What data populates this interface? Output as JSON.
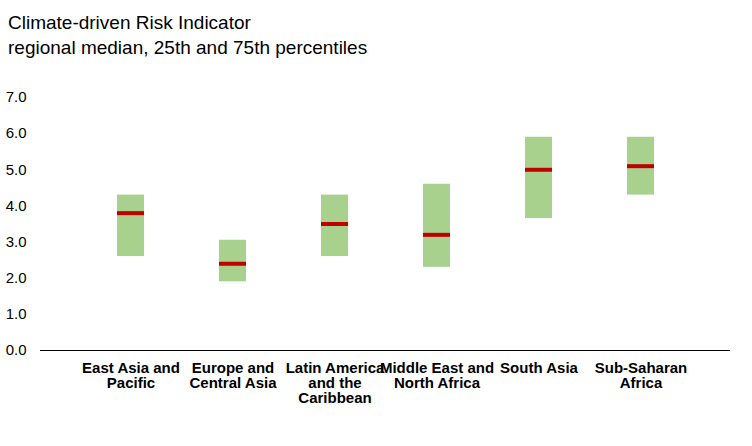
{
  "chart_data": {
    "type": "range_bar",
    "title": "Climate-driven Risk Indicator",
    "subtitle": "regional median, 25th and 75th percentiles",
    "categories": [
      "East Asia and Pacific",
      "Europe and Central Asia",
      "Latin America and the Caribbean",
      "Middle East and North Africa",
      "South Asia",
      "Sub-Saharan Africa"
    ],
    "series": [
      {
        "type": "bar",
        "color": "#a9d18e",
        "low": [
          2.6,
          1.9,
          2.6,
          2.3,
          3.65,
          4.3
        ],
        "high": [
          4.3,
          3.05,
          4.3,
          4.6,
          5.9,
          5.9
        ]
      },
      {
        "type": "tick",
        "color": "#c00000",
        "values": [
          3.8,
          2.4,
          3.5,
          3.2,
          5.0,
          5.1
        ]
      }
    ],
    "ylim": [
      0,
      7
    ],
    "yticks": [
      0,
      1,
      2,
      3,
      4,
      5,
      6,
      7
    ],
    "grid": false
  }
}
